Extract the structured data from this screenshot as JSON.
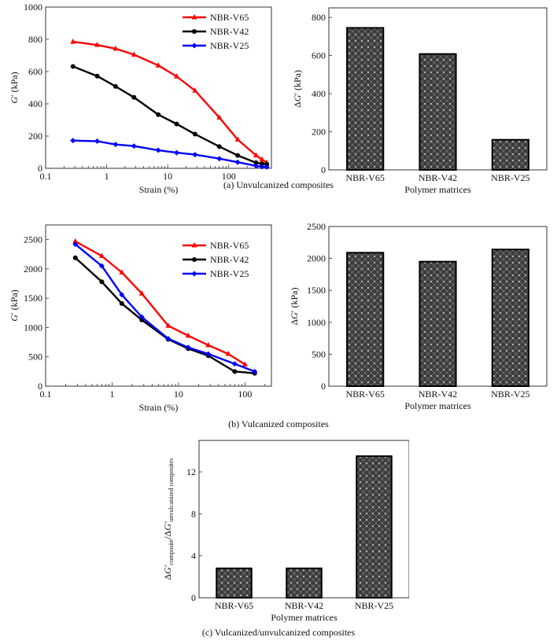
{
  "captions": {
    "a": "(a) Unvulcanized composites",
    "b": "(b) Vulcanized composites",
    "c": "(c) Vulcanized/unvulcanized composites"
  },
  "colors": {
    "NBR-V65": "#ff0000",
    "NBR-V42": "#000000",
    "NBR-V25": "#0000ff",
    "bar_fill": "#3a3a3a",
    "bar_dot": "#9a9a9a"
  },
  "chart_data": [
    {
      "id": "a-line",
      "type": "line",
      "title": "",
      "xlabel": "Strain (%)",
      "ylabel": "G′ (kPa)",
      "xscale": "log",
      "xlim": [
        0.1,
        500
      ],
      "ylim": [
        0,
        1000
      ],
      "xticks": [
        0.1,
        1,
        10,
        100
      ],
      "xtick_labels": [
        "0.1",
        "1",
        "10",
        "100"
      ],
      "yticks": [
        0,
        200,
        400,
        600,
        800,
        1000
      ],
      "ytick_labels": [
        "0",
        "200",
        "400",
        "600",
        "800",
        "1000"
      ],
      "legend": "top-right",
      "series": [
        {
          "name": "NBR-V65",
          "marker": "triangle",
          "x": [
            0.28,
            0.7,
            1.4,
            2.8,
            7,
            14,
            28,
            70,
            140,
            280,
            350,
            420
          ],
          "y": [
            785,
            765,
            742,
            705,
            638,
            570,
            482,
            315,
            178,
            80,
            55,
            35
          ]
        },
        {
          "name": "NBR-V42",
          "marker": "circle",
          "x": [
            0.28,
            0.7,
            1.4,
            2.8,
            7,
            14,
            28,
            70,
            140,
            280,
            350,
            420
          ],
          "y": [
            632,
            572,
            508,
            440,
            333,
            275,
            212,
            135,
            80,
            35,
            28,
            25
          ]
        },
        {
          "name": "NBR-V25",
          "marker": "diamond",
          "x": [
            0.28,
            0.7,
            1.4,
            2.8,
            7,
            14,
            28,
            70,
            140,
            280,
            350,
            420
          ],
          "y": [
            172,
            168,
            148,
            138,
            112,
            97,
            85,
            60,
            38,
            15,
            10,
            8
          ]
        }
      ]
    },
    {
      "id": "a-bar",
      "type": "bar",
      "title": "",
      "xlabel": "Polymer matrices",
      "ylabel": "ΔG′ (kPa)",
      "categories": [
        "NBR-V65",
        "NBR-V42",
        "NBR-V25"
      ],
      "values": [
        745,
        608,
        158
      ],
      "ylim": [
        0,
        850
      ],
      "yticks": [
        0,
        200,
        400,
        600,
        800
      ],
      "ytick_labels": [
        "0",
        "200",
        "400",
        "600",
        "800"
      ]
    },
    {
      "id": "b-line",
      "type": "line",
      "title": "",
      "xlabel": "Strain (%)",
      "ylabel": "G′ (kPa)",
      "xscale": "log",
      "xlim": [
        0.1,
        250
      ],
      "ylim": [
        0,
        2750
      ],
      "xticks": [
        0.1,
        1,
        10,
        100
      ],
      "xtick_labels": [
        "0.1",
        "1",
        "10",
        "100"
      ],
      "yticks": [
        0,
        500,
        1000,
        1500,
        2000,
        2500
      ],
      "ytick_labels": [
        "0",
        "500",
        "1000",
        "1500",
        "2000",
        "2500"
      ],
      "legend": "top-right",
      "series": [
        {
          "name": "NBR-V65",
          "marker": "triangle",
          "x": [
            0.28,
            0.7,
            1.4,
            2.8,
            7,
            14,
            28,
            56,
            100
          ],
          "y": [
            2470,
            2220,
            1940,
            1580,
            1030,
            860,
            700,
            550,
            370
          ]
        },
        {
          "name": "NBR-V42",
          "marker": "circle",
          "x": [
            0.28,
            0.7,
            1.4,
            2.8,
            7,
            14,
            28,
            70,
            140
          ],
          "y": [
            2190,
            1780,
            1410,
            1130,
            800,
            640,
            520,
            250,
            220
          ]
        },
        {
          "name": "NBR-V25",
          "marker": "diamond",
          "x": [
            0.28,
            0.7,
            1.4,
            2.8,
            7,
            14,
            28,
            70,
            140
          ],
          "y": [
            2420,
            2050,
            1560,
            1180,
            810,
            660,
            550,
            380,
            250
          ]
        }
      ]
    },
    {
      "id": "b-bar",
      "type": "bar",
      "title": "",
      "xlabel": "Polymer matrices",
      "ylabel": "ΔG′ (kPa)",
      "categories": [
        "NBR-V65",
        "NBR-V42",
        "NBR-V25"
      ],
      "values": [
        2090,
        1950,
        2140
      ],
      "ylim": [
        0,
        2500
      ],
      "yticks": [
        0,
        500,
        1000,
        1500,
        2000,
        2500
      ],
      "ytick_labels": [
        "0",
        "500",
        "1000",
        "1500",
        "2000",
        "2500"
      ]
    },
    {
      "id": "c-bar",
      "type": "bar",
      "title": "",
      "xlabel": "Polymer matrices",
      "ylabel": "ΔG′composite/ΔG′unvulcanized composites",
      "ylabel_main": "ΔG′",
      "ylabel_sub1": "composite",
      "ylabel_mid": "/ΔG′",
      "ylabel_sub2": "unvulcanized composites",
      "categories": [
        "NBR-V65",
        "NBR-V42",
        "NBR-V25"
      ],
      "values": [
        2.8,
        2.8,
        13.5
      ],
      "ylim": [
        0,
        15
      ],
      "yticks": [
        0,
        4,
        8,
        12
      ],
      "ytick_labels": [
        "0",
        "4",
        "8",
        "12"
      ]
    }
  ]
}
